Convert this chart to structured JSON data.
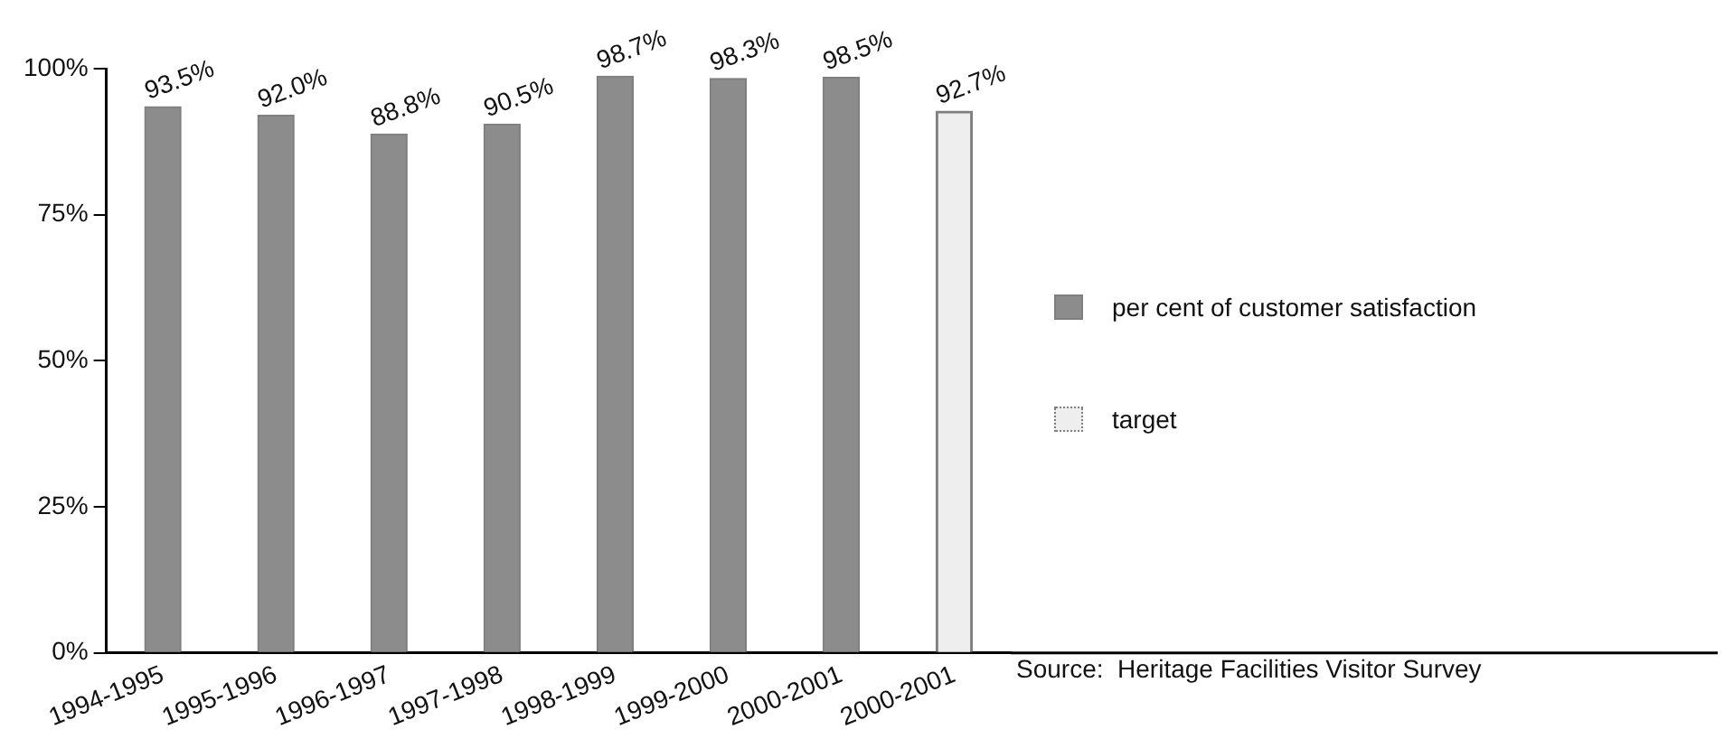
{
  "chart_data": {
    "type": "bar",
    "categories": [
      "1994-1995",
      "1995-1996",
      "1996-1997",
      "1997-1998",
      "1998-1999",
      "1999-2000",
      "2000-2001",
      "2000-2001"
    ],
    "series": [
      {
        "name": "per cent of customer satisfaction",
        "color": "#8c8c8c",
        "values": [
          93.5,
          92.0,
          88.8,
          90.5,
          98.7,
          98.3,
          98.5,
          null
        ],
        "value_labels": [
          "93.5%",
          "92.0%",
          "88.8%",
          "90.5%",
          "98.7%",
          "98.3%",
          "98.5%",
          null
        ]
      },
      {
        "name": "target",
        "color": "#eeeeee",
        "line_style": "dotted",
        "values": [
          null,
          null,
          null,
          null,
          null,
          null,
          null,
          92.7
        ],
        "value_labels": [
          null,
          null,
          null,
          null,
          null,
          null,
          null,
          "92.7%"
        ]
      }
    ],
    "ylim": [
      0,
      100
    ],
    "yticks": [
      {
        "value": 0,
        "label": "0%"
      },
      {
        "value": 25,
        "label": "25%"
      },
      {
        "value": 50,
        "label": "50%"
      },
      {
        "value": 75,
        "label": "75%"
      },
      {
        "value": 100,
        "label": "100%"
      }
    ],
    "grid": false,
    "legend": "right",
    "annotations": [
      "Source:  Heritage Facilities Visitor Survey"
    ]
  }
}
